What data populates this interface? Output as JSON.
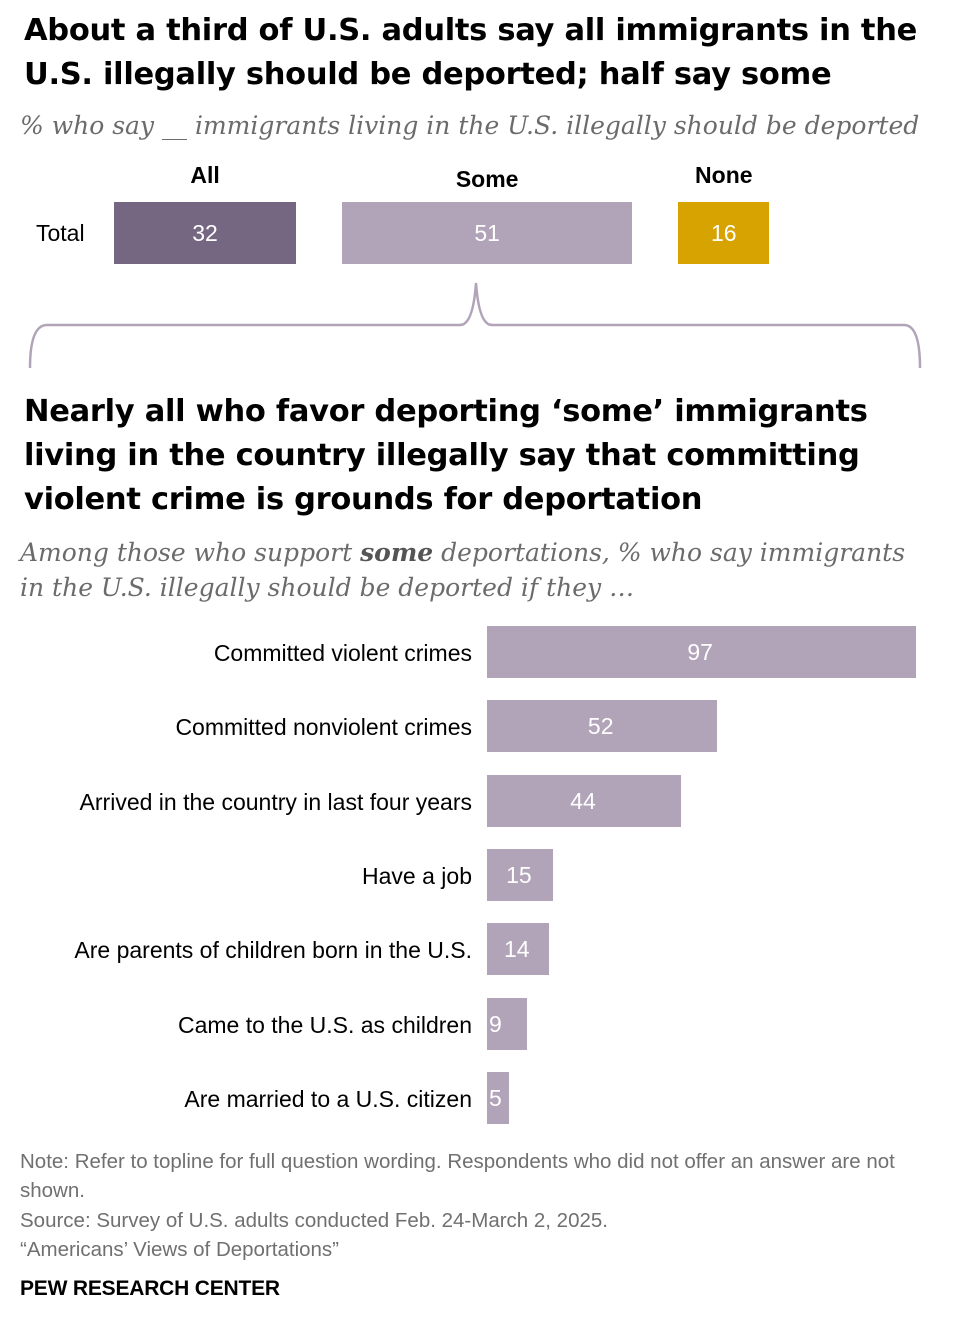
{
  "top_section": {
    "title": "About a third of U.S. adults say all immigrants in the U.S. illegally should be deported; half say some",
    "subtitle": "% who say __ immigrants living in the U.S. illegally should be deported"
  },
  "bottom_section": {
    "title": "Nearly all who favor deporting ‘some’ immigrants living in the country illegally say that committing violent crime is grounds for deportation",
    "subtitle_before": "Among those who support ",
    "subtitle_bold": "some",
    "subtitle_after": " deportations, % who say immigrants in the U.S. illegally should be deported if they …"
  },
  "chart_data": [
    {
      "type": "bar",
      "orientation": "horizontal-stacked",
      "categories": [
        "Total"
      ],
      "series": [
        {
          "name": "All",
          "values": [
            32
          ],
          "color": "#756682"
        },
        {
          "name": "Some",
          "values": [
            51
          ],
          "color": "#b1a3b8"
        },
        {
          "name": "None",
          "values": [
            16
          ],
          "color": "#d6a300"
        }
      ],
      "xlim": [
        0,
        100
      ],
      "legend": "top"
    },
    {
      "type": "bar",
      "orientation": "horizontal",
      "categories": [
        "Committed violent crimes",
        "Committed nonviolent crimes",
        "Arrived in the country in last four years",
        "Have a job",
        "Are parents of children born in the U.S.",
        "Came to the U.S. as children",
        "Are married to a U.S. citizen"
      ],
      "values": [
        97,
        52,
        44,
        15,
        14,
        9,
        5
      ],
      "color": "#b1a3b8",
      "xlim": [
        0,
        100
      ]
    }
  ],
  "footer": {
    "note": "Note: Refer to topline for full question wording. Respondents who did not offer an answer are not shown.",
    "source": "Source: Survey of U.S. adults conducted Feb. 24-March 2, 2025.",
    "report": "“Americans’ Views of Deportations”",
    "brand": "PEW RESEARCH CENTER"
  }
}
